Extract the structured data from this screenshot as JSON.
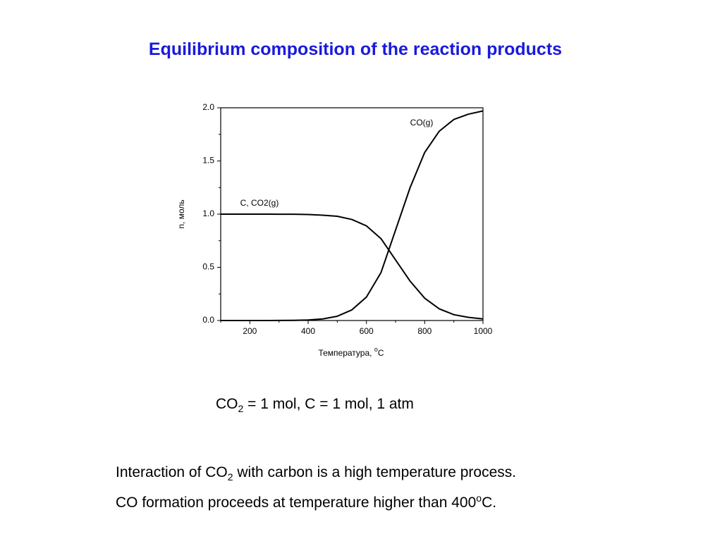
{
  "title": "Equilibrium composition of the reaction products",
  "chart_data": {
    "type": "line",
    "x_label": [
      "Температура, ",
      "o",
      "C"
    ],
    "y_label": "n, моль",
    "x": [
      100,
      150,
      200,
      250,
      300,
      350,
      400,
      450,
      500,
      550,
      600,
      650,
      700,
      750,
      800,
      850,
      900,
      950,
      1000
    ],
    "series": [
      {
        "name": "CO(g)",
        "color": "#000000",
        "values": [
          0,
          0,
          0,
          0,
          0.001,
          0.002,
          0.005,
          0.015,
          0.04,
          0.1,
          0.22,
          0.45,
          0.85,
          1.25,
          1.58,
          1.78,
          1.89,
          1.94,
          1.97
        ]
      },
      {
        "name": "C, CO2(g)",
        "color": "#000000",
        "values": [
          1,
          1,
          1,
          1,
          0.9995,
          0.999,
          0.997,
          0.99,
          0.98,
          0.95,
          0.89,
          0.77,
          0.57,
          0.37,
          0.21,
          0.11,
          0.055,
          0.03,
          0.015
        ]
      }
    ],
    "xlim": [
      100,
      1000
    ],
    "ylim": [
      0,
      2
    ],
    "xticks": [
      200,
      400,
      600,
      800,
      1000
    ],
    "xminorticks": [
      100,
      300,
      500,
      700,
      900
    ],
    "yticks": [
      {
        "value": 0,
        "label": "0.0"
      },
      0.5,
      {
        "value": 1,
        "label": "1.0"
      },
      1.5,
      {
        "value": 2,
        "label": "2.0"
      }
    ],
    "yminorticks": [
      0.25,
      0.75,
      1.25,
      1.75
    ]
  },
  "conditions": [
    "CO",
    "2",
    " = 1 mol, C = 1 mol, 1 atm"
  ],
  "notes": [
    [
      "Interaction of CO",
      "2",
      " with carbon is a high temperature process."
    ],
    [
      "CO formation proceeds at temperature higher than 400",
      "o",
      "C."
    ]
  ]
}
